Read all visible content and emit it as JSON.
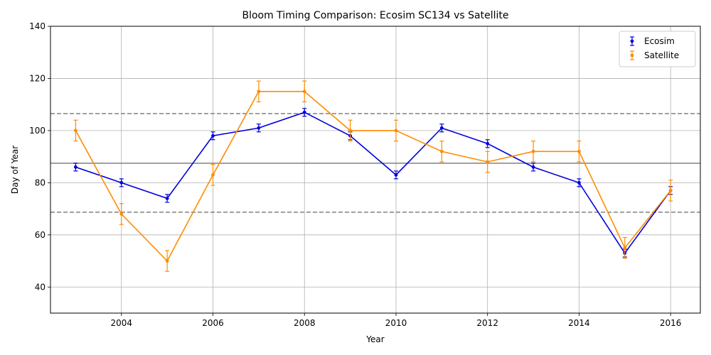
{
  "chart_data": {
    "type": "line",
    "title": "Bloom Timing Comparison: Ecosim SC134 vs Satellite",
    "xlabel": "Year",
    "ylabel": "Day of Year",
    "xlim": [
      2002.45,
      2016.65
    ],
    "ylim": [
      30,
      140
    ],
    "xticks": [
      2004,
      2006,
      2008,
      2010,
      2012,
      2014,
      2016
    ],
    "yticks": [
      40,
      60,
      80,
      100,
      120,
      140
    ],
    "grid": true,
    "legend_position": "top-right",
    "x": [
      2003,
      2004,
      2005,
      2006,
      2007,
      2008,
      2009,
      2010,
      2011,
      2012,
      2013,
      2014,
      2015,
      2016
    ],
    "series": [
      {
        "name": "Ecosim",
        "color": "#0000dd",
        "values": [
          86,
          80,
          74,
          98,
          101,
          107,
          98,
          83,
          101,
          95,
          86,
          80,
          53,
          77
        ],
        "error": [
          1.5,
          1.5,
          1.5,
          1.5,
          1.5,
          1.5,
          1.5,
          1.5,
          1.5,
          1.5,
          1.5,
          1.5,
          1.5,
          1.5
        ]
      },
      {
        "name": "Satellite",
        "color": "#ff8c00",
        "values": [
          100,
          68,
          50,
          83,
          115,
          115,
          100,
          100,
          92,
          88,
          92,
          92,
          55,
          77
        ],
        "error": [
          4,
          4,
          4,
          4,
          4,
          4,
          4,
          4,
          4,
          4,
          4,
          4,
          4,
          4
        ]
      }
    ],
    "reference_lines": [
      {
        "y": 87.5,
        "style": "solid",
        "color": "#808080"
      },
      {
        "y": 106.5,
        "style": "dashed",
        "color": "#808080"
      },
      {
        "y": 68.7,
        "style": "dashed",
        "color": "#808080"
      }
    ]
  }
}
